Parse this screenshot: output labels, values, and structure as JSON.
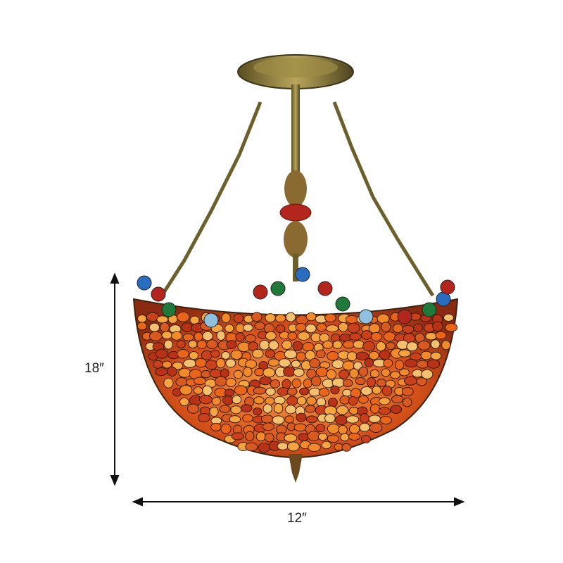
{
  "product": {
    "image": "stained-glass-pebble-semi-flush-pendant",
    "colors": {
      "pebble": "#e8651a",
      "metal": "#8a7a3a",
      "dimension_line": "#111111"
    }
  },
  "dimensions": {
    "height_label": "18″",
    "width_label": "12″"
  }
}
